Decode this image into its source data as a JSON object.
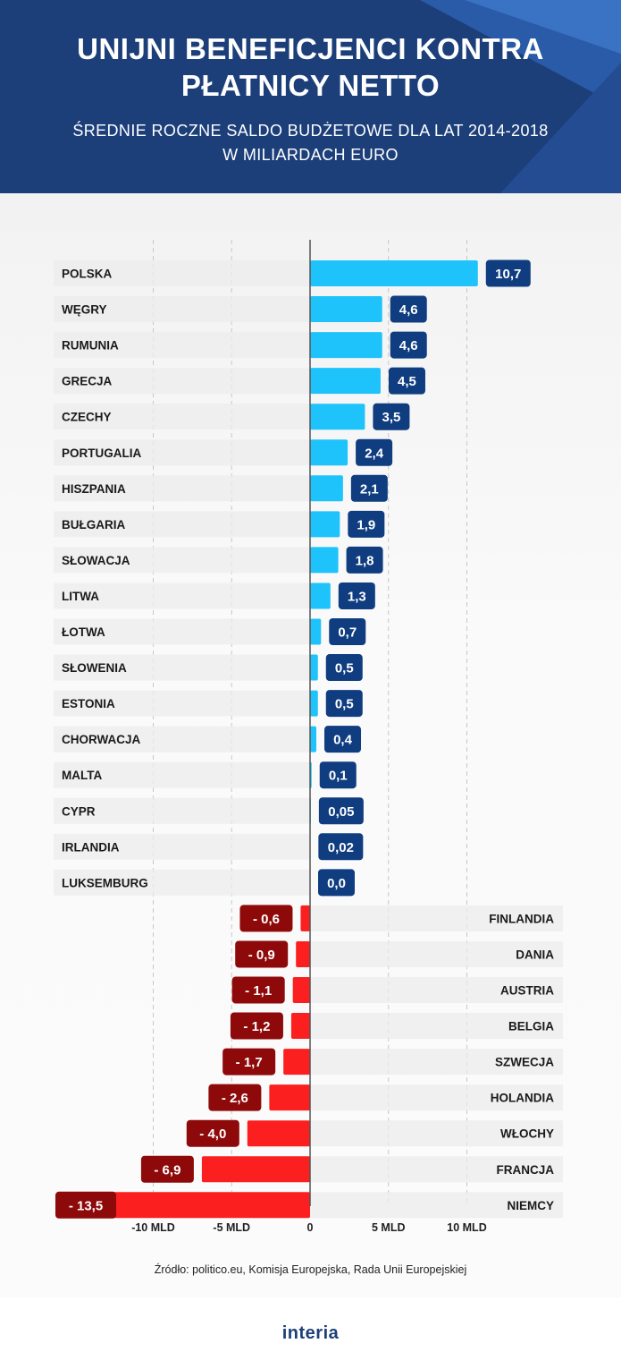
{
  "title_line1": "UNIJNI BENEFICJENCI KONTRA",
  "title_line2": "PŁATNICY NETTO",
  "subtitle_line1": "ŚREDNIE ROCZNE SALDO BUDŻETOWE DLA LAT 2014-2018",
  "subtitle_line2": "W MILIARDACH EURO",
  "source": "Źródło: politico.eu, Komisja Europejska, Rada Unii Europejskiej",
  "logo": "interia",
  "colors": {
    "header_bg": "#1c3f7a",
    "positive_bar": "#1ec3fb",
    "positive_label": "#0f3d80",
    "negative_bar": "#fc1f1f",
    "negative_label": "#8e0a0a"
  },
  "chart_data": {
    "type": "bar",
    "orientation": "horizontal",
    "categories": [
      "POLSKA",
      "WĘGRY",
      "RUMUNIA",
      "GRECJA",
      "CZECHY",
      "PORTUGALIA",
      "HISZPANIA",
      "BUŁGARIA",
      "SŁOWACJA",
      "LITWA",
      "ŁOTWA",
      "SŁOWENIA",
      "ESTONIA",
      "CHORWACJA",
      "MALTA",
      "CYPR",
      "IRLANDIA",
      "LUKSEMBURG",
      "FINLANDIA",
      "DANIA",
      "AUSTRIA",
      "BELGIA",
      "SZWECJA",
      "HOLANDIA",
      "WŁOCHY",
      "FRANCJA",
      "NIEMCY"
    ],
    "values": [
      10.7,
      4.6,
      4.6,
      4.5,
      3.5,
      2.4,
      2.1,
      1.9,
      1.8,
      1.3,
      0.7,
      0.5,
      0.5,
      0.4,
      0.1,
      0.05,
      0.02,
      0.0,
      -0.6,
      -0.9,
      -1.1,
      -1.2,
      -1.7,
      -2.6,
      -4.0,
      -6.9,
      -13.5
    ],
    "value_labels": [
      "10,7",
      "4,6",
      "4,6",
      "4,5",
      "3,5",
      "2,4",
      "2,1",
      "1,9",
      "1,8",
      "1,3",
      "0,7",
      "0,5",
      "0,5",
      "0,4",
      "0,1",
      "0,05",
      "0,02",
      "0,0",
      "- 0,6",
      "- 0,9",
      "- 1,1",
      "- 1,2",
      "- 1,7",
      "- 2,6",
      "- 4,0",
      "- 6,9",
      "- 13,5"
    ],
    "xlim": [
      -16,
      16
    ],
    "xticks": [
      -10,
      -5,
      0,
      5,
      10
    ],
    "xtick_labels": [
      "-10 MLD",
      "-5 MLD",
      "0",
      "5 MLD",
      "10 MLD"
    ],
    "grid": true
  }
}
